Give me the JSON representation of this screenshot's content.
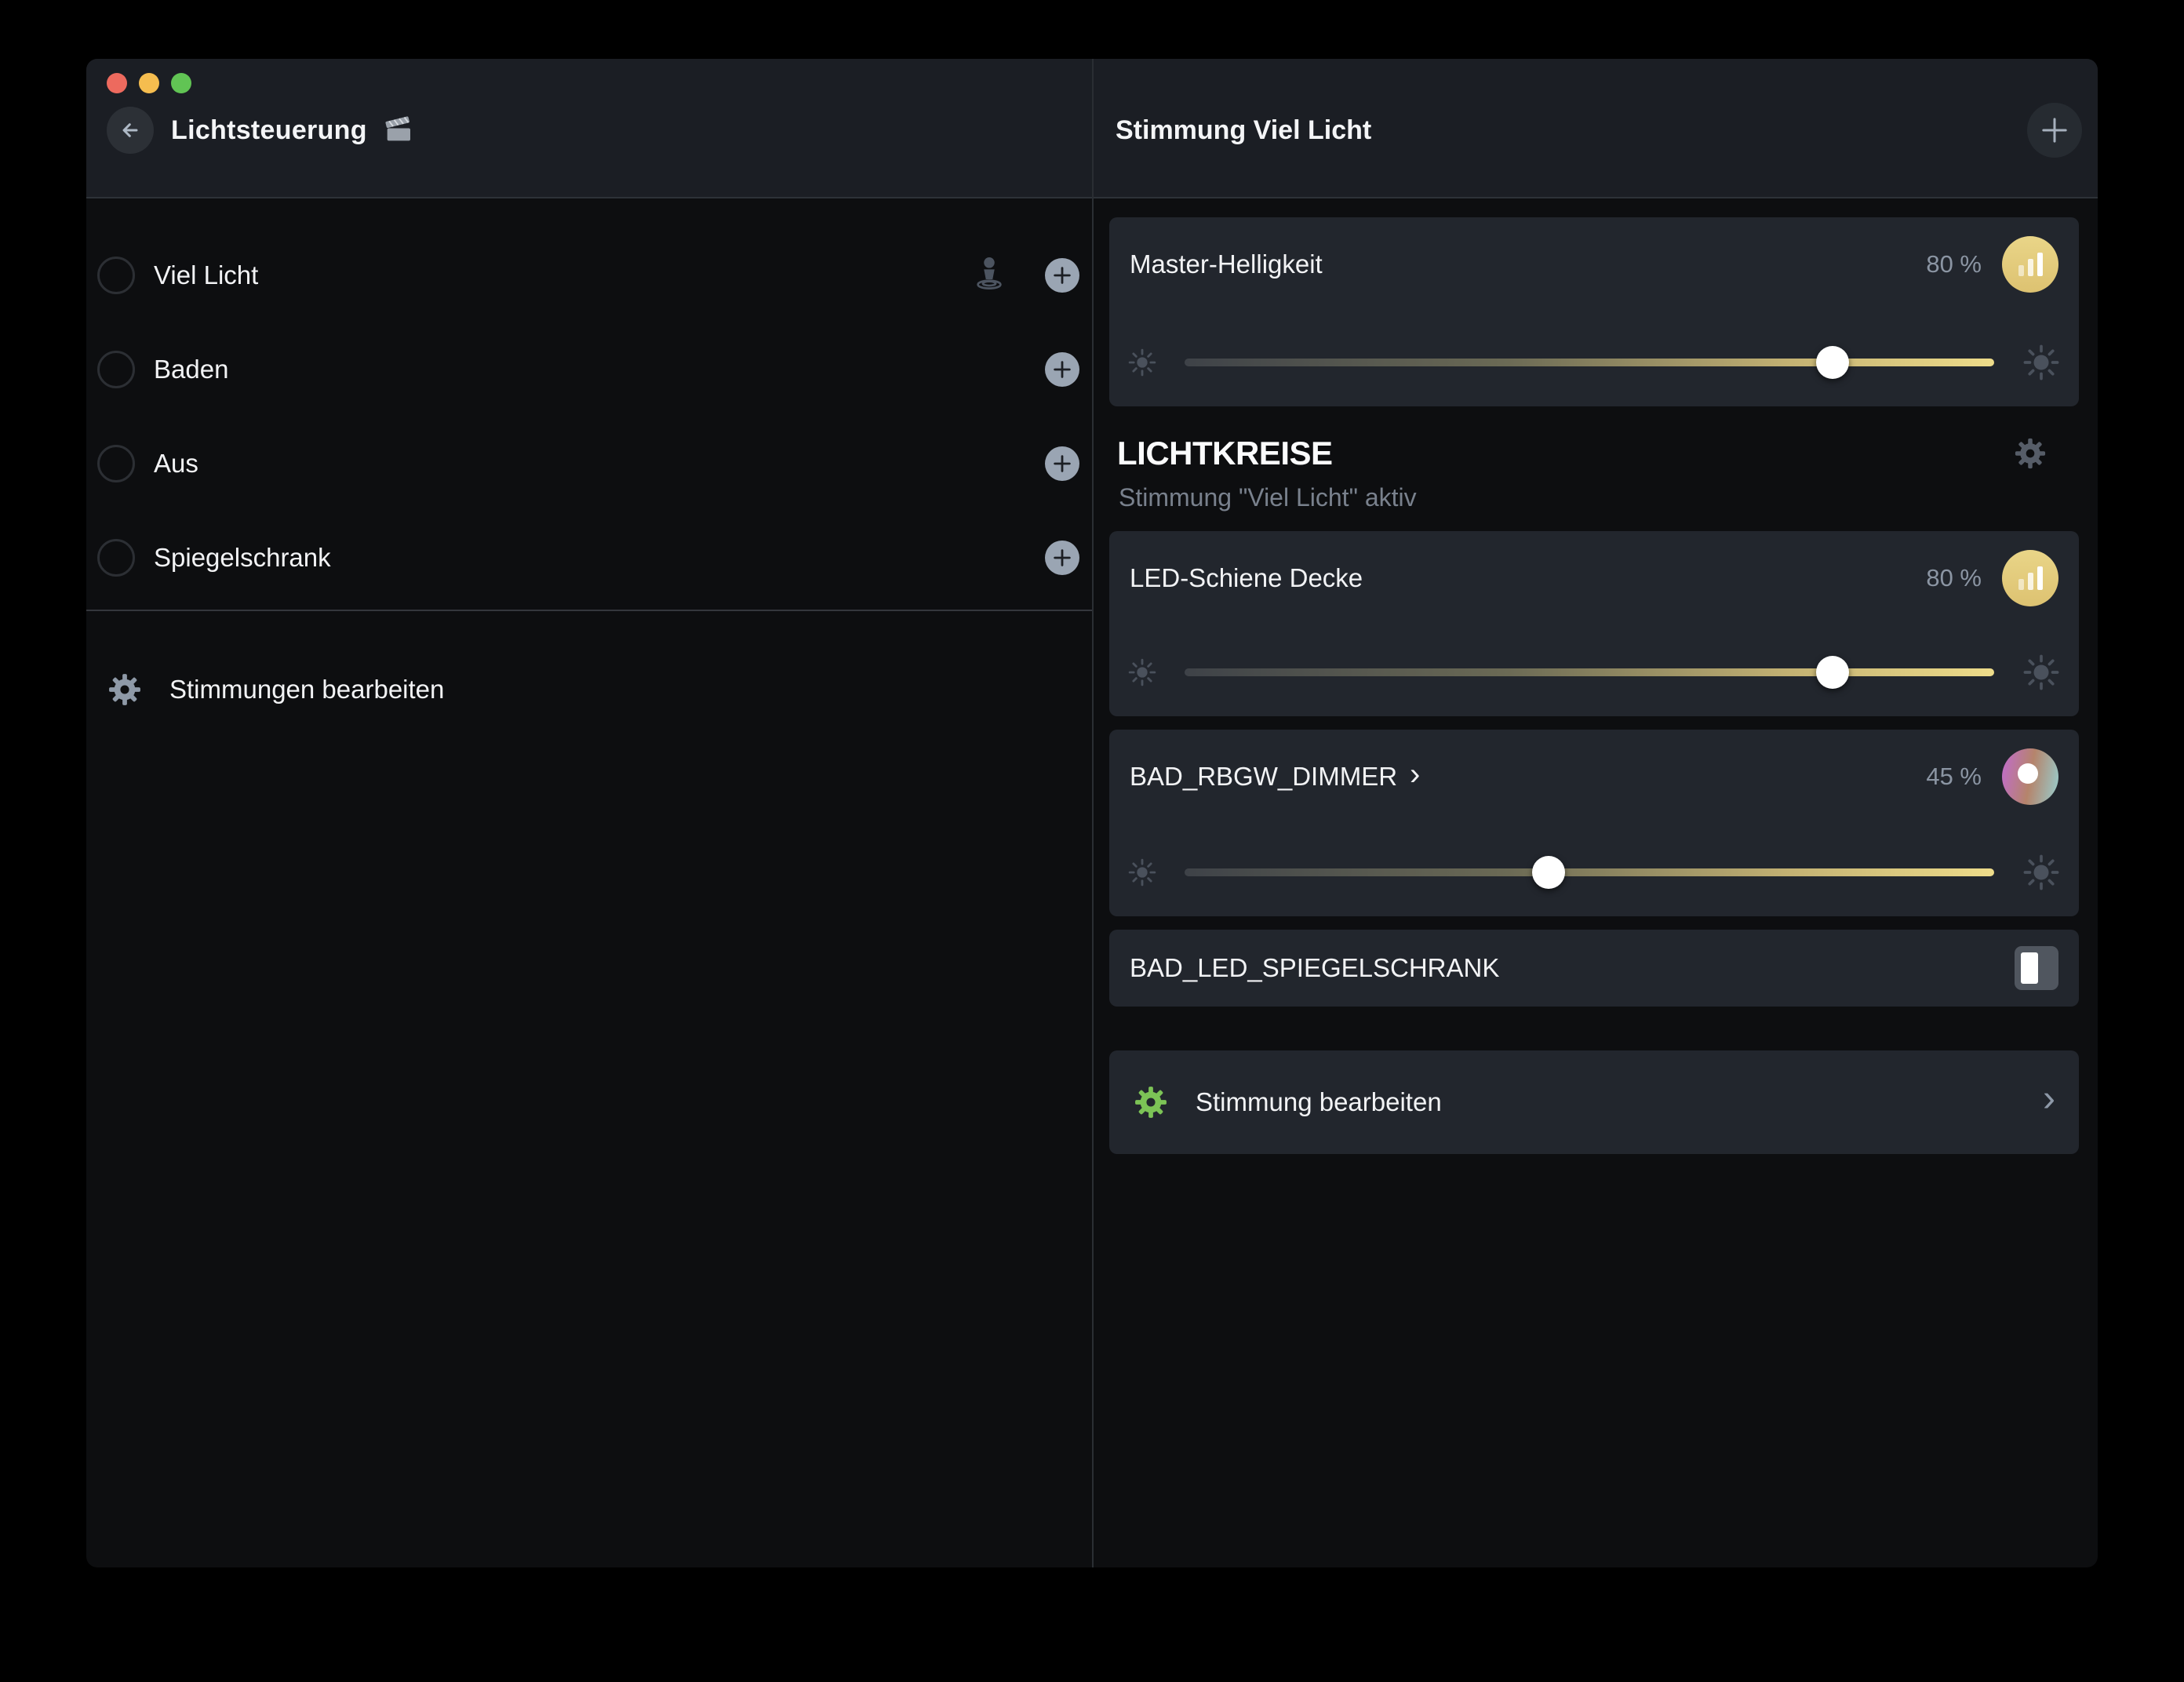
{
  "left": {
    "title": "Lichtsteuerung",
    "moods": {
      "items": [
        {
          "label": "Viel Licht"
        },
        {
          "label": "Baden"
        },
        {
          "label": "Aus"
        },
        {
          "label": "Spiegelschrank"
        }
      ],
      "edit_label": "Stimmungen bearbeiten"
    }
  },
  "right": {
    "title": "Stimmung Viel Licht",
    "master": {
      "title": "Master-Helligkeit",
      "value_label": "80 %",
      "percent": 80
    },
    "section": {
      "title": "LICHTKREISE",
      "subtitle": "Stimmung \"Viel Licht\" aktiv"
    },
    "circuits": {
      "led_schiene": {
        "title": "LED-Schiene Decke",
        "value_label": "80 %",
        "percent": 80
      },
      "rgbw_dimmer": {
        "title": "BAD_RBGW_DIMMER",
        "chevron": "›",
        "value_label": "45 %",
        "percent": 45
      },
      "spiegelschrank": {
        "title": "BAD_LED_SPIEGELSCHRANK"
      }
    },
    "edit_mood": {
      "label": "Stimmung bearbeiten",
      "chevron": "›"
    }
  },
  "colors": {
    "accent_yellow": "#e2cb7e",
    "accent_green": "#7cc356",
    "value_text": "#8b95a3",
    "card_bg": "#22262d"
  }
}
